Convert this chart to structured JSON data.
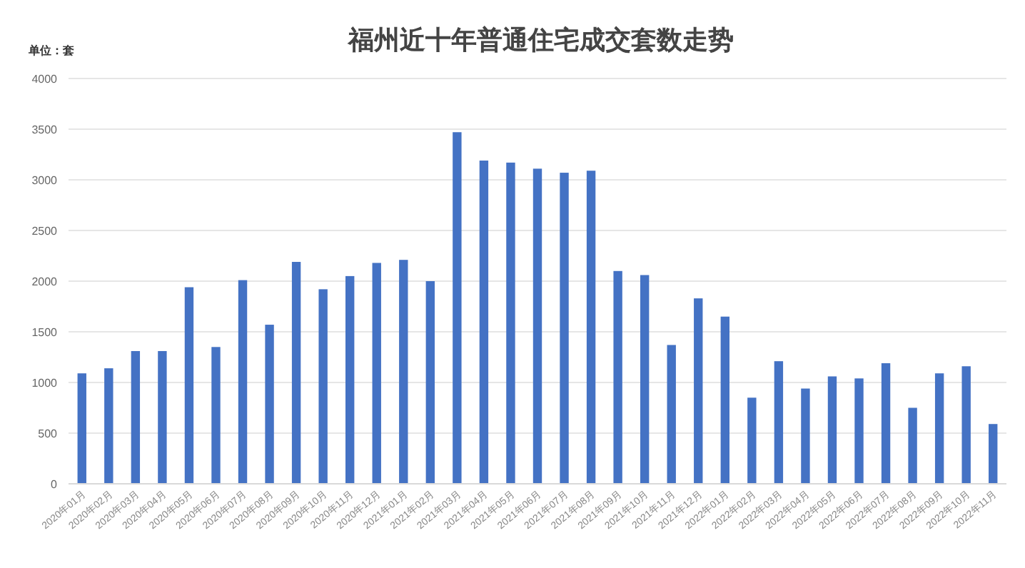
{
  "chart_data": {
    "type": "bar",
    "title": "福州近十年普通住宅成交套数走势",
    "ylabel": "单位：套",
    "categories": [
      "2020年01月",
      "2020年02月",
      "2020年03月",
      "2020年04月",
      "2020年05月",
      "2020年06月",
      "2020年07月",
      "2020年08月",
      "2020年09月",
      "2020年10月",
      "2020年11月",
      "2020年12月",
      "2021年01月",
      "2021年02月",
      "2021年03月",
      "2021年04月",
      "2021年05月",
      "2021年06月",
      "2021年07月",
      "2021年08月",
      "2021年09月",
      "2021年10月",
      "2021年11月",
      "2021年12月",
      "2022年01月",
      "2022年02月",
      "2022年03月",
      "2022年04月",
      "2022年05月",
      "2022年06月",
      "2022年07月",
      "2022年08月",
      "2022年09月",
      "2022年10月",
      "2022年11月"
    ],
    "values": [
      1090,
      1140,
      1310,
      1310,
      1940,
      1350,
      2010,
      1570,
      2190,
      1920,
      2050,
      2180,
      2210,
      2000,
      3470,
      3190,
      3170,
      3110,
      3070,
      3090,
      2100,
      2060,
      1370,
      1830,
      1650,
      850,
      1210,
      940,
      1060,
      1040,
      1190,
      750,
      1090,
      1160,
      590
    ],
    "color": "#4472c4",
    "ylim": [
      0,
      4000
    ],
    "yticks": [
      0,
      500,
      1000,
      1500,
      2000,
      2500,
      3000,
      3500,
      4000
    ],
    "grid": "y"
  }
}
